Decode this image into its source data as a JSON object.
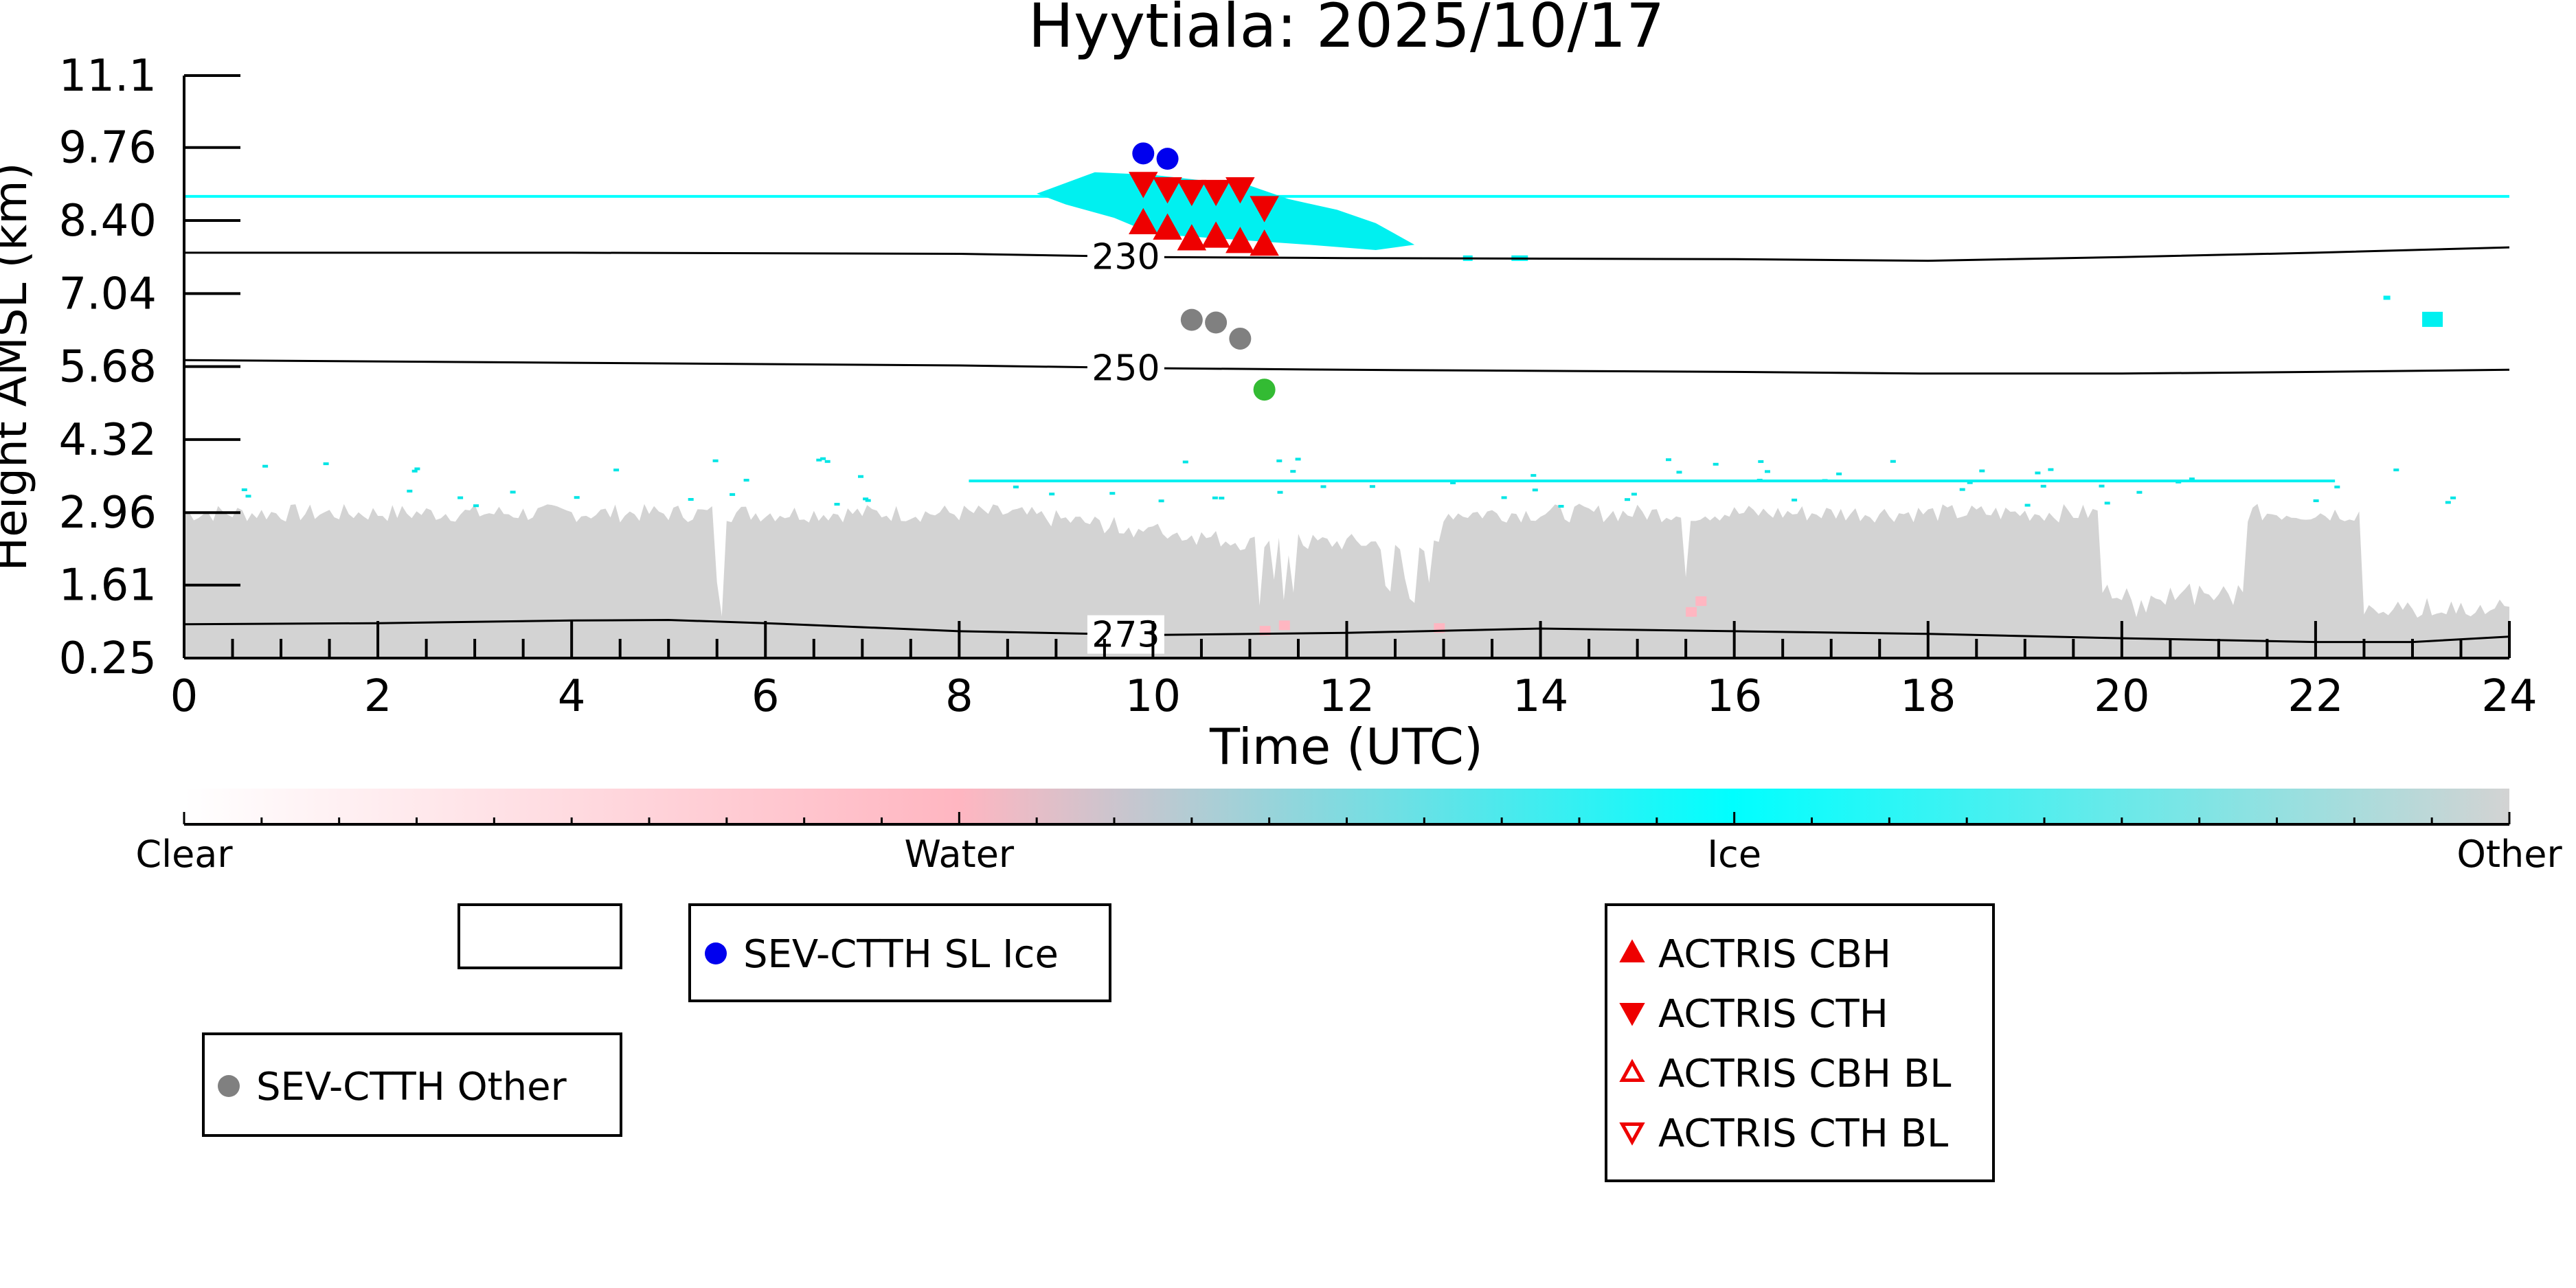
{
  "chart_data": {
    "type": "scatter",
    "title": "Hyytiala: 2025/10/17",
    "xlabel": "Time (UTC)",
    "ylabel": "Height AMSL (km)",
    "xlim": [
      0,
      24
    ],
    "ylim": [
      0.25,
      11.1
    ],
    "x_ticks": [
      "0",
      "2",
      "4",
      "6",
      "8",
      "10",
      "12",
      "14",
      "16",
      "18",
      "20",
      "22",
      "24"
    ],
    "y_ticks": [
      "0.25",
      "1.61",
      "2.96",
      "4.32",
      "5.68",
      "7.04",
      "8.40",
      "9.76",
      "11.1"
    ],
    "x_tick_values": [
      0,
      2,
      4,
      6,
      8,
      10,
      12,
      14,
      16,
      18,
      20,
      22,
      24
    ],
    "y_tick_values": [
      0.25,
      1.61,
      2.96,
      4.32,
      5.68,
      7.04,
      8.4,
      9.76,
      11.1
    ],
    "grid": false,
    "colorbar": {
      "labels": [
        "Clear",
        "Water",
        "Ice",
        "Other"
      ],
      "colors": [
        "#ffffff",
        "#ffb6c1",
        "#00ffff",
        "#d3d3d3"
      ]
    },
    "temperature_contours": [
      {
        "label": "230",
        "x": [
          0,
          4,
          8,
          10,
          12,
          16,
          18,
          20,
          22,
          24
        ],
        "y": [
          7.8,
          7.8,
          7.78,
          7.72,
          7.7,
          7.68,
          7.65,
          7.72,
          7.8,
          7.9
        ]
      },
      {
        "label": "250",
        "x": [
          0,
          4,
          8,
          10,
          12,
          16,
          18,
          20,
          22,
          24
        ],
        "y": [
          5.8,
          5.75,
          5.7,
          5.65,
          5.62,
          5.58,
          5.55,
          5.55,
          5.58,
          5.62
        ]
      },
      {
        "label": "273",
        "x": [
          0,
          2,
          4,
          5,
          6,
          8,
          10,
          12,
          14,
          16,
          18,
          20,
          22,
          23,
          24
        ],
        "y": [
          0.88,
          0.9,
          0.95,
          0.96,
          0.9,
          0.75,
          0.68,
          0.72,
          0.8,
          0.75,
          0.7,
          0.62,
          0.55,
          0.55,
          0.65
        ]
      }
    ],
    "series": [
      {
        "name": "SEV-CTTH SL Ice",
        "marker": "circle",
        "color": "#0000ee",
        "x": [
          9.9,
          10.15
        ],
        "y": [
          9.65,
          9.55
        ]
      },
      {
        "name": "SEV-CTTH Other",
        "marker": "circle",
        "color": "#808080",
        "x": [
          10.4,
          10.65,
          10.9
        ],
        "y": [
          6.55,
          6.5,
          6.2
        ]
      },
      {
        "name": "",
        "marker": "circle",
        "color": "#33bb33",
        "x": [
          11.15
        ],
        "y": [
          5.25
        ]
      },
      {
        "name": "ACTRIS CBH",
        "marker": "triangle-up",
        "color": "#ee0000",
        "x": [
          9.9,
          10.15,
          10.4,
          10.65,
          10.9,
          11.15
        ],
        "y": [
          8.35,
          8.25,
          8.05,
          8.1,
          8.0,
          7.95
        ]
      },
      {
        "name": "ACTRIS CTH",
        "marker": "triangle-down",
        "color": "#ee0000",
        "x": [
          9.9,
          10.15,
          10.4,
          10.65,
          10.9,
          11.15
        ],
        "y": [
          9.1,
          9.0,
          8.95,
          8.95,
          9.0,
          8.65
        ]
      },
      {
        "name": "ACTRIS CBH BL",
        "marker": "triangle-up-open",
        "color": "#ee0000",
        "x": [],
        "y": []
      },
      {
        "name": "ACTRIS CTH BL",
        "marker": "triangle-down-open",
        "color": "#ee0000",
        "x": [],
        "y": []
      }
    ],
    "cirrus_height": 8.85,
    "ice_line_height": 3.55,
    "boundary_layer_top_approx": 2.95
  },
  "legends": {
    "box1": [],
    "box2": [
      "SEV-CTTH SL Ice"
    ],
    "box3": [
      "SEV-CTTH Other"
    ],
    "box4": [
      "ACTRIS CBH",
      "ACTRIS CTH",
      "ACTRIS CBH BL",
      "ACTRIS CTH BL"
    ]
  }
}
